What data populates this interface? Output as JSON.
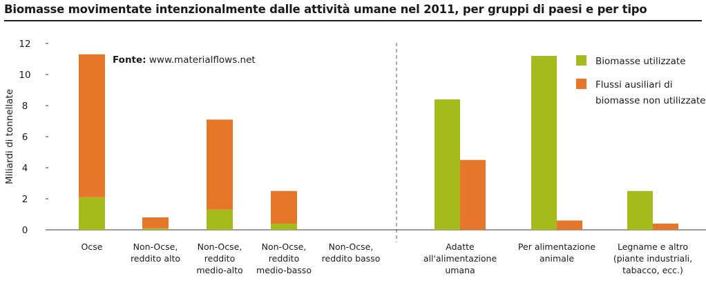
{
  "title": "Biomasse movimentate intenzionalmente dalle attività umane nel 2011, per gruppi di paesi e per tipo",
  "source": {
    "label": "Fonte:",
    "text": " www.materialflows.net"
  },
  "colors": {
    "used": "#a5bb1c",
    "unused": "#e5762a",
    "axis": "#333333",
    "divider": "#555555"
  },
  "legend": [
    {
      "key": "used",
      "lines": [
        "Biomasse utilizzate"
      ]
    },
    {
      "key": "unused",
      "lines": [
        "Flussi ausiliari di",
        "biomasse non utilizzate"
      ]
    }
  ],
  "chart_data": {
    "type": "bar",
    "ylabel": "Miliardi di tonnellate",
    "ylim": [
      0,
      12
    ],
    "yticks": [
      0,
      2,
      4,
      6,
      8,
      10,
      12
    ],
    "grid": false,
    "legend_position": "top-right",
    "stacked_groups": {
      "categories": [
        [
          "Ocse"
        ],
        [
          "Non-Ocse,",
          "reddito alto"
        ],
        [
          "Non-Ocse,",
          "reddito",
          "medio-alto"
        ],
        [
          "Non-Ocse,",
          "reddito",
          "medio-basso"
        ],
        [
          "Non-Ocse,",
          "reddito basso"
        ]
      ],
      "series": [
        {
          "key": "used",
          "values": [
            2.1,
            0.1,
            1.3,
            0.4,
            0
          ]
        },
        {
          "key": "unused",
          "values": [
            9.2,
            0.7,
            5.8,
            2.1,
            0
          ]
        }
      ]
    },
    "grouped_types": {
      "categories": [
        [
          "Adatte",
          "all'alimentazione",
          "umana"
        ],
        [
          "Per alimentazione",
          "animale"
        ],
        [
          "Legname e altro",
          "(piante industriali,",
          "tabacco, ecc.)"
        ]
      ],
      "series": [
        {
          "key": "used",
          "values": [
            8.4,
            11.2,
            2.5
          ]
        },
        {
          "key": "unused",
          "values": [
            4.5,
            0.6,
            0.4
          ]
        }
      ]
    }
  }
}
